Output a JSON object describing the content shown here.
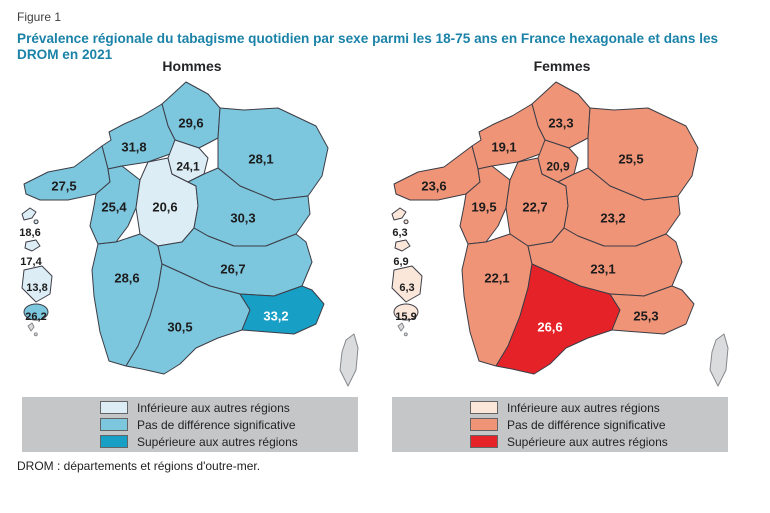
{
  "figure_label": "Figure 1",
  "title": "Prévalence régionale du tabagisme quotidien par sexe parmi les 18-75 ans en France hexagonale et dans les DROM en 2021",
  "footnote": "DROM : départements et régions d'outre-mer.",
  "legend": {
    "lower": "Inférieure aux autres régions",
    "nodiff": "Pas de différence significative",
    "higher": "Supérieure aux autres régions"
  },
  "colors": {
    "title": "#1b82a8",
    "legend_bg": "#c5c6c8",
    "outline": "#3c3d46",
    "no_data": "#d9dbdd",
    "no_data_outline": "#85878b",
    "label": "#1c1c1c",
    "label_light": "#ffffff"
  },
  "chart_data": [
    {
      "type": "choropleth-map",
      "title": "Hommes",
      "unit": "% prévalence du tabagisme quotidien",
      "palette": {
        "lower": "#dcedf6",
        "nodiff": "#7cc6de",
        "higher": "#189fc6"
      },
      "legend_position": "bottom",
      "regions": [
        {
          "id": "hdf",
          "name": "Hauts-de-France",
          "value": "29,6",
          "status": "nodiff"
        },
        {
          "id": "ge",
          "name": "Grand Est",
          "value": "28,1",
          "status": "nodiff"
        },
        {
          "id": "nor",
          "name": "Normandie",
          "value": "31,8",
          "status": "nodiff"
        },
        {
          "id": "bre",
          "name": "Bretagne",
          "value": "27,5",
          "status": "nodiff"
        },
        {
          "id": "pdl",
          "name": "Pays de la Loire",
          "value": "25,4",
          "status": "nodiff"
        },
        {
          "id": "cvl",
          "name": "Centre-Val de Loire",
          "value": "20,6",
          "status": "lower"
        },
        {
          "id": "idf",
          "name": "Île-de-France",
          "value": "24,1",
          "status": "lower"
        },
        {
          "id": "bfc",
          "name": "Bourgogne-Franche-Comté",
          "value": "30,3",
          "status": "nodiff"
        },
        {
          "id": "naq",
          "name": "Nouvelle-Aquitaine",
          "value": "28,6",
          "status": "nodiff"
        },
        {
          "id": "ara",
          "name": "Auvergne-Rhône-Alpes",
          "value": "26,7",
          "status": "nodiff"
        },
        {
          "id": "occ",
          "name": "Occitanie",
          "value": "30,5",
          "status": "nodiff"
        },
        {
          "id": "paca",
          "name": "Provence-Alpes-Côte d'Azur",
          "value": "33,2",
          "status": "higher",
          "label_color": "light"
        },
        {
          "id": "corse",
          "name": "Corse",
          "value": null,
          "status": "nodata"
        },
        {
          "id": "gua",
          "name": "Guadeloupe",
          "value": "18,6",
          "status": "lower"
        },
        {
          "id": "mtq",
          "name": "Martinique",
          "value": "17,4",
          "status": "lower"
        },
        {
          "id": "guy",
          "name": "Guyane",
          "value": "13,8",
          "status": "lower"
        },
        {
          "id": "reu",
          "name": "La Réunion",
          "value": "26,2",
          "status": "nodiff"
        },
        {
          "id": "may",
          "name": "Mayotte",
          "value": null,
          "status": "nodata"
        }
      ]
    },
    {
      "type": "choropleth-map",
      "title": "Femmes",
      "unit": "% prévalence du tabagisme quotidien",
      "palette": {
        "lower": "#fbe6da",
        "nodiff": "#f09478",
        "higher": "#e52228"
      },
      "legend_position": "bottom",
      "regions": [
        {
          "id": "hdf",
          "name": "Hauts-de-France",
          "value": "23,3",
          "status": "nodiff"
        },
        {
          "id": "ge",
          "name": "Grand Est",
          "value": "25,5",
          "status": "nodiff"
        },
        {
          "id": "nor",
          "name": "Normandie",
          "value": "19,1",
          "status": "nodiff"
        },
        {
          "id": "bre",
          "name": "Bretagne",
          "value": "23,6",
          "status": "nodiff"
        },
        {
          "id": "pdl",
          "name": "Pays de la Loire",
          "value": "19,5",
          "status": "nodiff"
        },
        {
          "id": "cvl",
          "name": "Centre-Val de Loire",
          "value": "22,7",
          "status": "nodiff"
        },
        {
          "id": "idf",
          "name": "Île-de-France",
          "value": "20,9",
          "status": "nodiff"
        },
        {
          "id": "bfc",
          "name": "Bourgogne-Franche-Comté",
          "value": "23,2",
          "status": "nodiff"
        },
        {
          "id": "naq",
          "name": "Nouvelle-Aquitaine",
          "value": "22,1",
          "status": "nodiff"
        },
        {
          "id": "ara",
          "name": "Auvergne-Rhône-Alpes",
          "value": "23,1",
          "status": "nodiff"
        },
        {
          "id": "occ",
          "name": "Occitanie",
          "value": "26,6",
          "status": "higher",
          "label_color": "light"
        },
        {
          "id": "paca",
          "name": "Provence-Alpes-Côte d'Azur",
          "value": "25,3",
          "status": "nodiff"
        },
        {
          "id": "corse",
          "name": "Corse",
          "value": null,
          "status": "nodata"
        },
        {
          "id": "gua",
          "name": "Guadeloupe",
          "value": "6,3",
          "status": "lower"
        },
        {
          "id": "mtq",
          "name": "Martinique",
          "value": "6,9",
          "status": "lower"
        },
        {
          "id": "guy",
          "name": "Guyane",
          "value": "6,3",
          "status": "lower"
        },
        {
          "id": "reu",
          "name": "La Réunion",
          "value": "15,9",
          "status": "lower"
        },
        {
          "id": "may",
          "name": "Mayotte",
          "value": null,
          "status": "nodata"
        }
      ]
    }
  ]
}
